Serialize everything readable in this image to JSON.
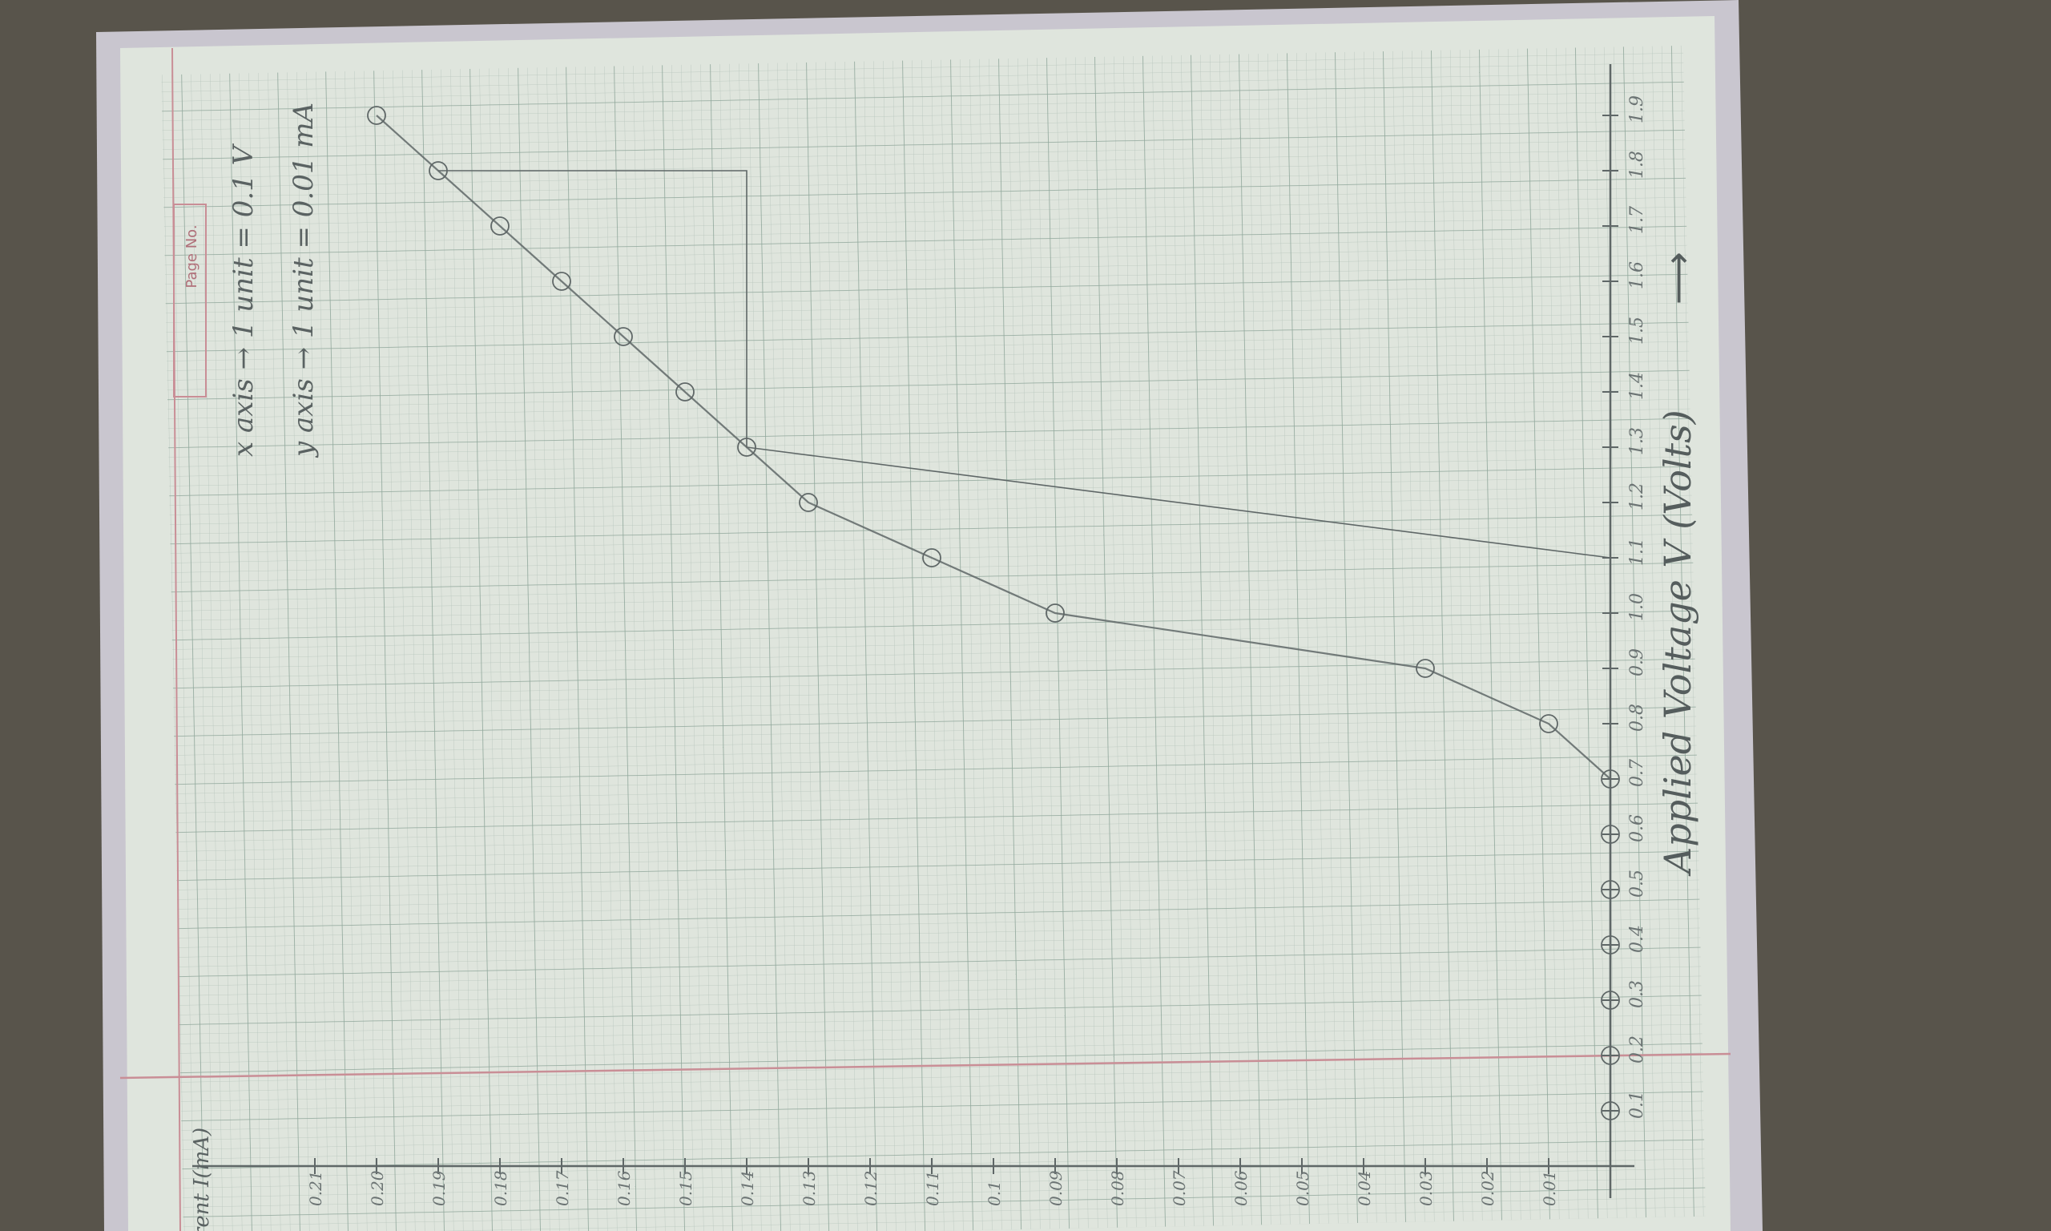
{
  "page": {
    "page_no_label": "Page No."
  },
  "annotations": {
    "scale_x": "x axis → 1 unit = 0.1 V",
    "scale_y": "y axis → 1 unit = 0.01 mA",
    "x_axis_title": "Applied Voltage V (Volts)",
    "y_axis_title": "Current I(mA)"
  },
  "chart_data": {
    "type": "line",
    "title": "",
    "xlabel": "Applied Voltage V (Volts)",
    "ylabel": "Current I(mA)",
    "x_tick_labels": [
      "0.1",
      "0.2",
      "0.3",
      "0.4",
      "0.5",
      "0.6",
      "0.7",
      "0.8",
      "0.9",
      "1.0",
      "1.1",
      "1.2",
      "1.3",
      "1.4",
      "1.5",
      "1.6",
      "1.7",
      "1.8",
      "1.9"
    ],
    "y_tick_labels": [
      "0.01",
      "0.02",
      "0.03",
      "0.04",
      "0.05",
      "0.06",
      "0.07",
      "0.08",
      "0.09",
      "0.1",
      "0.11",
      "0.12",
      "0.13",
      "0.14",
      "0.15",
      "0.16",
      "0.17",
      "0.18",
      "0.19",
      "0.20",
      "0.21"
    ],
    "xlim": [
      0,
      1.9
    ],
    "ylim": [
      0,
      0.21
    ],
    "grid": true,
    "series": [
      {
        "points": [
          {
            "x": 0.1,
            "y": 0
          },
          {
            "x": 0.2,
            "y": 0
          },
          {
            "x": 0.3,
            "y": 0
          },
          {
            "x": 0.4,
            "y": 0
          },
          {
            "x": 0.5,
            "y": 0
          },
          {
            "x": 0.6,
            "y": 0
          },
          {
            "x": 0.7,
            "y": 0
          },
          {
            "x": 0.8,
            "y": 0.01
          },
          {
            "x": 0.9,
            "y": 0.03
          },
          {
            "x": 1.0,
            "y": 0.09
          },
          {
            "x": 1.1,
            "y": 0.11
          },
          {
            "x": 1.2,
            "y": 0.13
          },
          {
            "x": 1.3,
            "y": 0.14
          },
          {
            "x": 1.4,
            "y": 0.15
          },
          {
            "x": 1.5,
            "y": 0.16
          },
          {
            "x": 1.6,
            "y": 0.17
          },
          {
            "x": 1.7,
            "y": 0.18
          },
          {
            "x": 1.8,
            "y": 0.19
          },
          {
            "x": 1.9,
            "y": 0.2
          }
        ]
      }
    ]
  },
  "colors": {
    "paper": "#dfe5dd",
    "grid": "#a9bbb0",
    "grid_major": "#8fa69a",
    "pencil": "#5f6767",
    "margin_line": "#c98e96",
    "background": "#545048"
  }
}
